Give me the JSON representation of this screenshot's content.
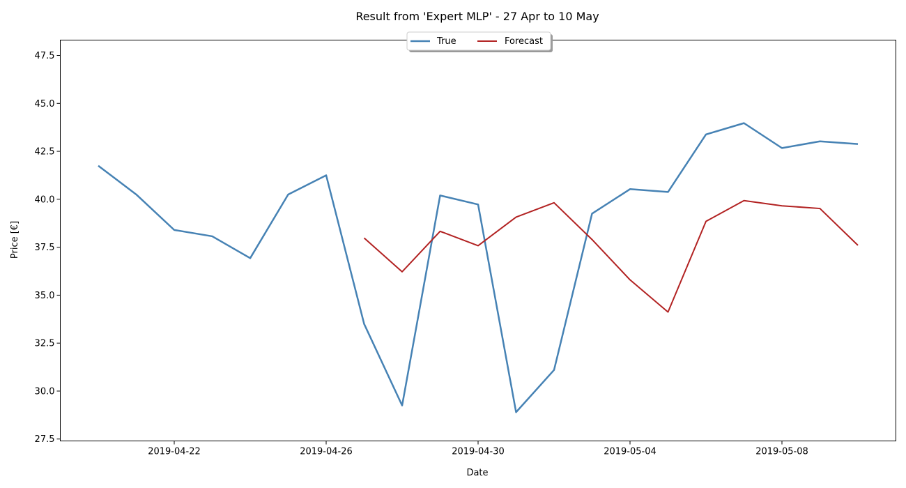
{
  "chart_data": {
    "type": "line",
    "title": "Result from 'Expert MLP' - 27 Apr to 10 May",
    "xlabel": "Date",
    "ylabel": "Price [€]",
    "x_ticks": [
      "2019-04-22",
      "2019-04-26",
      "2019-04-30",
      "2019-05-04",
      "2019-05-08"
    ],
    "y_ticks": [
      "27.5",
      "30.0",
      "32.5",
      "35.0",
      "37.5",
      "40.0",
      "42.5",
      "45.0",
      "47.5"
    ],
    "xlim": [
      "2019-04-19",
      "2019-05-11"
    ],
    "ylim": [
      27.4,
      48.3
    ],
    "legend_position": "top-center",
    "grid": false,
    "series": [
      {
        "name": "True",
        "color": "#4682b4",
        "points": [
          [
            "2019-04-20",
            41.75
          ],
          [
            "2019-04-21",
            40.25
          ],
          [
            "2019-04-22",
            38.4
          ],
          [
            "2019-04-23",
            38.07
          ],
          [
            "2019-04-24",
            36.93
          ],
          [
            "2019-04-25",
            40.25
          ],
          [
            "2019-04-26",
            41.25
          ],
          [
            "2019-04-27",
            33.5
          ],
          [
            "2019-04-28",
            29.25
          ],
          [
            "2019-04-29",
            40.2
          ],
          [
            "2019-04-30",
            39.73
          ],
          [
            "2019-05-01",
            28.9
          ],
          [
            "2019-05-02",
            31.1
          ],
          [
            "2019-05-03",
            39.25
          ],
          [
            "2019-05-04",
            40.53
          ],
          [
            "2019-05-05",
            40.38
          ],
          [
            "2019-05-06",
            43.38
          ],
          [
            "2019-05-07",
            43.97
          ],
          [
            "2019-05-08",
            42.67
          ],
          [
            "2019-05-09",
            43.02
          ],
          [
            "2019-05-10",
            42.88
          ]
        ]
      },
      {
        "name": "Forecast",
        "color": "#b22222",
        "points": [
          [
            "2019-04-27",
            37.98
          ],
          [
            "2019-04-28",
            36.22
          ],
          [
            "2019-04-29",
            38.33
          ],
          [
            "2019-04-30",
            37.58
          ],
          [
            "2019-05-01",
            39.07
          ],
          [
            "2019-05-02",
            39.82
          ],
          [
            "2019-05-03",
            37.9
          ],
          [
            "2019-05-04",
            35.8
          ],
          [
            "2019-05-05",
            34.12
          ],
          [
            "2019-05-06",
            38.85
          ],
          [
            "2019-05-07",
            39.93
          ],
          [
            "2019-05-08",
            39.66
          ],
          [
            "2019-05-09",
            39.52
          ],
          [
            "2019-05-10",
            37.6
          ]
        ]
      }
    ]
  }
}
